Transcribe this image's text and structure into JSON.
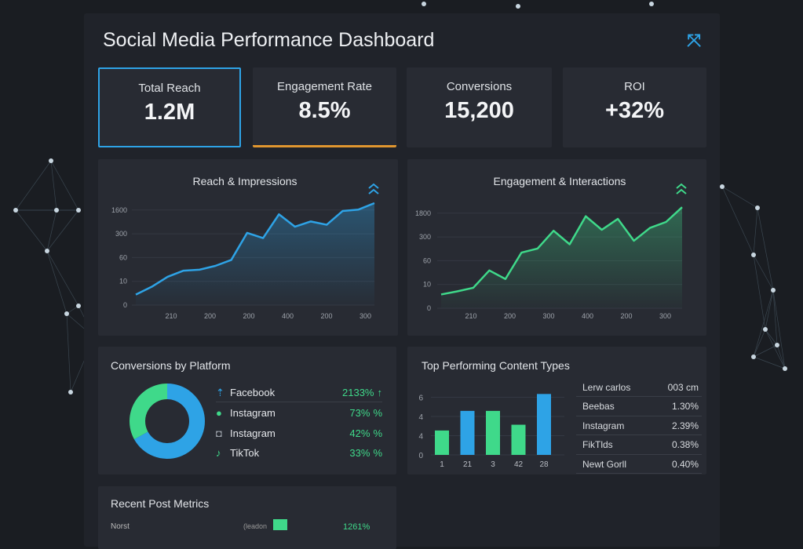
{
  "header": {
    "title": "Social Media Performance Dashboard",
    "expand_icon": "expand-arrows-icon"
  },
  "kpis": [
    {
      "label": "Total Reach",
      "value": "1.2M"
    },
    {
      "label": "Engagement Rate",
      "value": "8.5%"
    },
    {
      "label": "Conversions",
      "value": "15,200"
    },
    {
      "label": "ROI",
      "value": "+32%"
    }
  ],
  "colors": {
    "blue": "#2ea3e6",
    "green": "#3fd98a",
    "orange": "#e0962f"
  },
  "chart_data": [
    {
      "type": "area",
      "title": "Reach & Impressions",
      "color": "#2ea3e6",
      "trend_icon": "double-chevron-up-icon",
      "y_ticks": [
        "0",
        "10",
        "60",
        "300",
        "1600"
      ],
      "x_ticks": [
        "210",
        "200",
        "200",
        "400",
        "200",
        "300"
      ],
      "y_levels": [
        0.44,
        0.77,
        1.19,
        1.45,
        1.49,
        1.65,
        1.9,
        3.04,
        2.82,
        3.82,
        3.3,
        3.52,
        3.38,
        3.96,
        4.02,
        4.29
      ],
      "grid": true
    },
    {
      "type": "area",
      "title": "Engagement & Interactions",
      "color": "#3fd98a",
      "trend_icon": "double-chevron-up-icon",
      "y_ticks": [
        "0",
        "10",
        "60",
        "300",
        "1800"
      ],
      "x_ticks": [
        "210",
        "200",
        "300",
        "400",
        "200",
        "300"
      ],
      "y_levels": [
        0.58,
        0.71,
        0.86,
        1.59,
        1.23,
        2.34,
        2.51,
        3.26,
        2.69,
        3.87,
        3.3,
        3.76,
        2.84,
        3.38,
        3.63,
        4.25
      ],
      "grid": true
    },
    {
      "type": "pie",
      "title": "Conversions by Platform",
      "slices": [
        {
          "color": "#2ea3e6",
          "fraction": 0.67
        },
        {
          "color": "#3fd98a",
          "fraction": 0.33
        }
      ]
    },
    {
      "type": "bar",
      "title": "Top Performing Content Types",
      "y_ticks": [
        "0",
        "4",
        "4",
        "6"
      ],
      "categories": [
        "1",
        "21",
        "3",
        "42",
        "28"
      ],
      "y_levels": [
        1.27,
        2.29,
        2.29,
        1.57,
        3.17
      ],
      "bar_colors": [
        "#3fd98a",
        "#2ea3e6",
        "#3fd98a",
        "#3fd98a",
        "#2ea3e6"
      ],
      "grid": true
    }
  ],
  "platforms": [
    {
      "icon": "facebook-arrow-icon",
      "name": "Facebook",
      "pct": "2133%",
      "trend": "↑"
    },
    {
      "icon": "instagram-clock-icon",
      "name": "Instagram",
      "pct": "73%",
      "trend": "%"
    },
    {
      "icon": "instagram-icon",
      "name": "Instagram",
      "pct": "42%",
      "trend": "%"
    },
    {
      "icon": "tiktok-icon",
      "name": "TikTok",
      "pct": "33%",
      "trend": "%"
    }
  ],
  "content_table": [
    [
      "Lerw carlos",
      "003 cm"
    ],
    [
      "Beebas",
      "1.30%"
    ],
    [
      "Instagram",
      "2.39%"
    ],
    [
      "FikTlds",
      "0.38%"
    ],
    [
      "Newt Gorll",
      "0.40%"
    ]
  ],
  "recent": {
    "title": "Recent Post Metrics",
    "row_label": "Norst",
    "row_mid": "(leadon",
    "row_pct": "1261%"
  }
}
